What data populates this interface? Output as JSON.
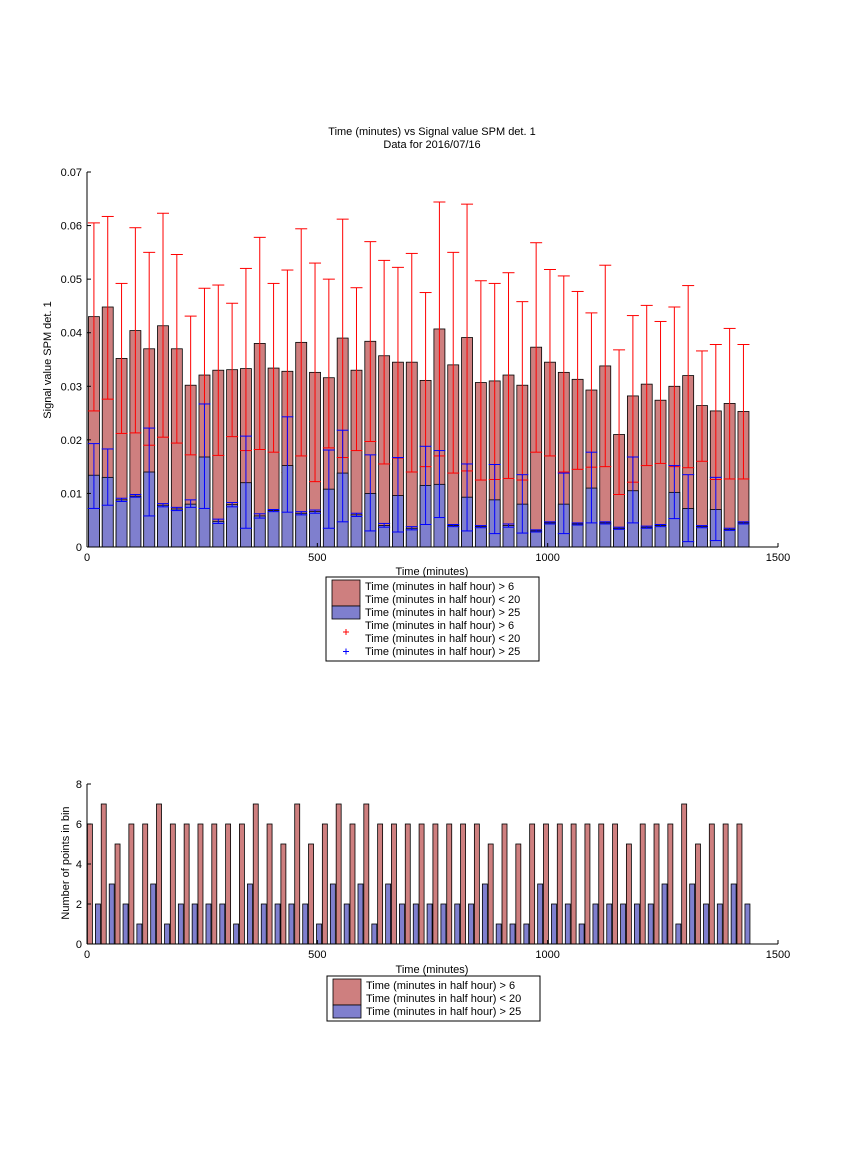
{
  "colors": {
    "red_fill": "#ce7f7f",
    "blue_fill": "#7f7fce",
    "red_marker": "#ff0000",
    "blue_marker": "#0000ff",
    "axis": "#000000"
  },
  "chart_data": [
    {
      "type": "bar",
      "title": "Time (minutes) vs Signal value SPM det. 1",
      "subtitle": "Data for 2016/07/16",
      "xlabel": "Time (minutes)",
      "ylabel": "Signal value SPM det. 1",
      "xlim": [
        0,
        1500
      ],
      "ylim": [
        0,
        0.07
      ],
      "xticks": [
        "0",
        "500",
        "1000",
        "1500"
      ],
      "yticks": [
        "0",
        "0.01",
        "0.02",
        "0.03",
        "0.04",
        "0.05",
        "0.06",
        "0.07"
      ],
      "grid": false,
      "legend_position": "below",
      "legend": [
        {
          "kind": "bar",
          "color": "red",
          "lines": [
            "Time (minutes in half hour) > 6",
            "Time (minutes in half hour) < 20"
          ]
        },
        {
          "kind": "bar",
          "color": "blue",
          "lines": [
            "Time (minutes in half hour) > 25"
          ]
        },
        {
          "kind": "marker",
          "color": "red",
          "lines": [
            "Time (minutes in half hour) > 6",
            "Time (minutes in half hour) < 20"
          ]
        },
        {
          "kind": "marker",
          "color": "blue",
          "lines": [
            "Time (minutes in half hour) > 25"
          ]
        }
      ],
      "x": [
        15,
        45,
        75,
        105,
        135,
        165,
        195,
        225,
        255,
        285,
        315,
        345,
        375,
        405,
        435,
        465,
        495,
        525,
        555,
        585,
        615,
        645,
        675,
        705,
        735,
        765,
        795,
        825,
        855,
        885,
        915,
        945,
        975,
        1005,
        1035,
        1065,
        1095,
        1125,
        1155,
        1185,
        1215,
        1245,
        1275,
        1305,
        1335,
        1365,
        1395,
        1425
      ],
      "series": [
        {
          "name": "Time (minutes in half hour) > 6 Time (minutes in half hour) < 20",
          "values": [
            0.043,
            0.0448,
            0.0352,
            0.0404,
            0.037,
            0.0413,
            0.037,
            0.0302,
            0.0321,
            0.033,
            0.0331,
            0.0333,
            0.038,
            0.0334,
            0.0328,
            0.0382,
            0.0326,
            0.0316,
            0.039,
            0.033,
            0.0384,
            0.0357,
            0.0345,
            0.0345,
            0.0311,
            0.0407,
            0.034,
            0.0391,
            0.0307,
            0.031,
            0.0321,
            0.0302,
            0.0373,
            0.0345,
            0.0326,
            0.0313,
            0.0293,
            0.0338,
            0.021,
            0.0282,
            0.0304,
            0.0274,
            0.03,
            0.032,
            0.0264,
            0.0254,
            0.0268,
            0.0253
          ],
          "err_low": [
            0.0254,
            0.0276,
            0.0212,
            0.0213,
            0.019,
            0.0205,
            0.0194,
            0.0172,
            0.0157,
            0.0171,
            0.0206,
            0.018,
            0.0182,
            0.0177,
            0.0139,
            0.017,
            0.0122,
            0.0185,
            0.0167,
            0.018,
            0.0197,
            0.0155,
            0.0166,
            0.014,
            0.015,
            0.017,
            0.0138,
            0.0142,
            0.0125,
            0.0126,
            0.0128,
            0.0125,
            0.0177,
            0.017,
            0.014,
            0.0145,
            0.0149,
            0.015,
            0.0098,
            0.0121,
            0.0152,
            0.0156,
            0.015,
            0.0148,
            0.016,
            0.0126,
            0.0127,
            0.0127
          ],
          "err_high": [
            0.0605,
            0.0617,
            0.0492,
            0.0596,
            0.055,
            0.0623,
            0.0546,
            0.0431,
            0.0483,
            0.0489,
            0.0455,
            0.052,
            0.0578,
            0.0492,
            0.0517,
            0.0594,
            0.053,
            0.05,
            0.0612,
            0.0484,
            0.057,
            0.0535,
            0.0522,
            0.0548,
            0.0475,
            0.0644,
            0.055,
            0.064,
            0.0497,
            0.0492,
            0.0512,
            0.0458,
            0.0568,
            0.0518,
            0.0506,
            0.0477,
            0.0437,
            0.0526,
            0.0368,
            0.0432,
            0.0451,
            0.0421,
            0.0448,
            0.0488,
            0.0366,
            0.0378,
            0.0408,
            0.0378
          ]
        },
        {
          "name": "Time (minutes in half hour) > 25",
          "values": [
            0.0134,
            0.013,
            0.0088,
            0.0095,
            0.014,
            0.0078,
            0.0071,
            0.008,
            0.0168,
            0.0048,
            0.0079,
            0.012,
            0.0058,
            0.0068,
            0.0152,
            0.0063,
            0.0066,
            0.0108,
            0.0138,
            0.006,
            0.01,
            0.004,
            0.0096,
            0.0035,
            0.0115,
            0.0117,
            0.004,
            0.0093,
            0.0038,
            0.0088,
            0.004,
            0.008,
            0.003,
            0.0045,
            0.008,
            0.0043,
            0.011,
            0.0045,
            0.0035,
            0.0105,
            0.0037,
            0.004,
            0.0102,
            0.0072,
            0.0038,
            0.007,
            0.0033,
            0.0045
          ],
          "err_low": [
            0.0072,
            0.0078,
            0.0085,
            0.0093,
            0.0058,
            0.0075,
            0.0068,
            0.0074,
            0.0072,
            0.0044,
            0.0075,
            0.0035,
            0.0054,
            0.0066,
            0.0065,
            0.006,
            0.0063,
            0.0035,
            0.0047,
            0.0057,
            0.003,
            0.0037,
            0.0028,
            0.0032,
            0.0042,
            0.0055,
            0.0038,
            0.003,
            0.0036,
            0.0025,
            0.0037,
            0.0026,
            0.0028,
            0.0043,
            0.0025,
            0.0041,
            0.0045,
            0.0043,
            0.0033,
            0.0045,
            0.0035,
            0.0038,
            0.0053,
            0.001,
            0.0036,
            0.0012,
            0.0031,
            0.0043
          ],
          "err_high": [
            0.0193,
            0.0183,
            0.0091,
            0.0098,
            0.0222,
            0.0081,
            0.0074,
            0.0088,
            0.0267,
            0.0052,
            0.0083,
            0.0207,
            0.0062,
            0.007,
            0.0243,
            0.0066,
            0.0069,
            0.0181,
            0.0218,
            0.0063,
            0.0172,
            0.0044,
            0.0167,
            0.0038,
            0.0188,
            0.018,
            0.0042,
            0.0155,
            0.004,
            0.0154,
            0.0043,
            0.0135,
            0.0032,
            0.0047,
            0.0138,
            0.0045,
            0.0177,
            0.0047,
            0.0037,
            0.0168,
            0.0039,
            0.0042,
            0.0152,
            0.0135,
            0.004,
            0.013,
            0.0035,
            0.0047
          ]
        }
      ]
    },
    {
      "type": "bar",
      "title": "",
      "xlabel": "Time (minutes)",
      "ylabel": "Number of points in bin",
      "xlim": [
        0,
        1500
      ],
      "ylim": [
        0,
        8
      ],
      "xticks": [
        "0",
        "500",
        "1000",
        "1500"
      ],
      "yticks": [
        "0",
        "2",
        "4",
        "6",
        "8"
      ],
      "grid": false,
      "legend_position": "below",
      "legend": [
        {
          "kind": "bar",
          "color": "red",
          "lines": [
            "Time (minutes in half hour) > 6",
            "Time (minutes in half hour) < 20"
          ]
        },
        {
          "kind": "bar",
          "color": "blue",
          "lines": [
            "Time (minutes in half hour) > 25"
          ]
        }
      ],
      "x": [
        15,
        45,
        75,
        105,
        135,
        165,
        195,
        225,
        255,
        285,
        315,
        345,
        375,
        405,
        435,
        465,
        495,
        525,
        555,
        585,
        615,
        645,
        675,
        705,
        735,
        765,
        795,
        825,
        855,
        885,
        915,
        945,
        975,
        1005,
        1035,
        1065,
        1095,
        1125,
        1155,
        1185,
        1215,
        1245,
        1275,
        1305,
        1335,
        1365,
        1395,
        1425
      ],
      "series": [
        {
          "name": "Time (minutes in half hour) > 6 Time (minutes in half hour) < 20",
          "values": [
            6,
            7,
            5,
            6,
            6,
            7,
            6,
            6,
            6,
            6,
            6,
            6,
            7,
            6,
            5,
            7,
            5,
            6,
            7,
            6,
            7,
            6,
            6,
            6,
            6,
            6,
            6,
            6,
            6,
            5,
            6,
            5,
            6,
            6,
            6,
            6,
            6,
            6,
            6,
            5,
            6,
            6,
            6,
            7,
            5,
            6,
            6,
            6
          ]
        },
        {
          "name": "Time (minutes in half hour) > 25",
          "values": [
            2,
            3,
            2,
            1,
            3,
            1,
            2,
            2,
            2,
            2,
            1,
            3,
            2,
            2,
            2,
            2,
            1,
            3,
            2,
            3,
            1,
            3,
            2,
            2,
            2,
            2,
            2,
            2,
            3,
            1,
            1,
            1,
            3,
            2,
            2,
            1,
            2,
            2,
            2,
            2,
            2,
            3,
            1,
            3,
            2,
            2,
            3,
            2
          ]
        }
      ]
    }
  ]
}
